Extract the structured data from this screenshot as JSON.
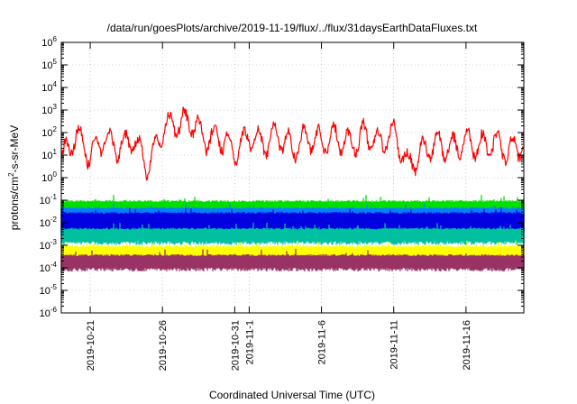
{
  "chart_data": {
    "type": "line",
    "title": "/data/run/goesPlots/archive/2019-11-19/flux/../flux/31daysEarthDataFluxes.txt",
    "xlabel": "Coordinated Universal Time (UTC)",
    "ylabel": "protons/cm²-s-sr-MeV",
    "ylabel_base": "protons/cm",
    "ylabel_sup": "2",
    "ylabel_rest": "-s-sr-MeV",
    "yscale": "log",
    "ylim": [
      1e-06,
      1000000.0
    ],
    "xlim": [
      "2019-10-19",
      "2019-11-20"
    ],
    "grid": true,
    "legend": "none",
    "y_ticks": [
      {
        "base": "10",
        "exp": "6"
      },
      {
        "base": "10",
        "exp": "5"
      },
      {
        "base": "10",
        "exp": "4"
      },
      {
        "base": "10",
        "exp": "3"
      },
      {
        "base": "10",
        "exp": "2"
      },
      {
        "base": "10",
        "exp": "1"
      },
      {
        "base": "10",
        "exp": "0"
      },
      {
        "base": "10",
        "exp": "-1"
      },
      {
        "base": "10",
        "exp": "-2"
      },
      {
        "base": "10",
        "exp": "-3"
      },
      {
        "base": "10",
        "exp": "-4"
      },
      {
        "base": "10",
        "exp": "-5"
      },
      {
        "base": "10",
        "exp": "-6"
      }
    ],
    "x_ticks": [
      {
        "date": "2019-10-21",
        "label": "2019-10-21"
      },
      {
        "date": "2019-10-26",
        "label": "2019-10-26"
      },
      {
        "date": "2019-10-31",
        "label": "2019-10-31"
      },
      {
        "date": "2019-11-01",
        "label": "2019-11-1"
      },
      {
        "date": "2019-11-06",
        "label": "2019-11-6"
      },
      {
        "date": "2019-11-11",
        "label": "2019-11-11"
      },
      {
        "date": "2019-11-16",
        "label": "2019-11-16"
      }
    ],
    "series": [
      {
        "color": "#ff0000",
        "style": "line",
        "x": [
          "2019-10-19",
          "2019-10-20",
          "2019-10-21",
          "2019-10-22",
          "2019-10-23",
          "2019-10-24",
          "2019-10-25",
          "2019-10-26",
          "2019-10-27",
          "2019-10-28",
          "2019-10-29",
          "2019-10-30",
          "2019-10-31",
          "2019-11-01",
          "2019-11-02",
          "2019-11-03",
          "2019-11-04",
          "2019-11-05",
          "2019-11-06",
          "2019-11-07",
          "2019-11-08",
          "2019-11-09",
          "2019-11-10",
          "2019-11-11",
          "2019-11-12",
          "2019-11-13",
          "2019-11-14",
          "2019-11-15",
          "2019-11-16",
          "2019-11-17",
          "2019-11-18",
          "2019-11-19",
          "2019-11-20"
        ],
        "y": [
          5,
          80,
          10,
          60,
          20,
          50,
          3,
          150,
          250,
          300,
          50,
          60,
          15,
          70,
          30,
          80,
          20,
          60,
          40,
          70,
          30,
          80,
          30,
          100,
          3,
          15,
          30,
          20,
          40,
          25,
          35,
          15,
          30
        ]
      },
      {
        "color": "#00e000",
        "style": "band",
        "low": 0.02,
        "high": 0.1
      },
      {
        "color": "#0080ff",
        "style": "band",
        "low": 0.004,
        "high": 0.05
      },
      {
        "color": "#0000e0",
        "style": "band",
        "low": 0.005,
        "high": 0.03
      },
      {
        "color": "#00c0a0",
        "style": "band",
        "low": 0.0015,
        "high": 0.006
      },
      {
        "color": "#ffff00",
        "style": "band",
        "low": 0.0003,
        "high": 0.001
      },
      {
        "color": "#993366",
        "style": "band",
        "low": 0.0001,
        "high": 0.0004
      }
    ]
  }
}
